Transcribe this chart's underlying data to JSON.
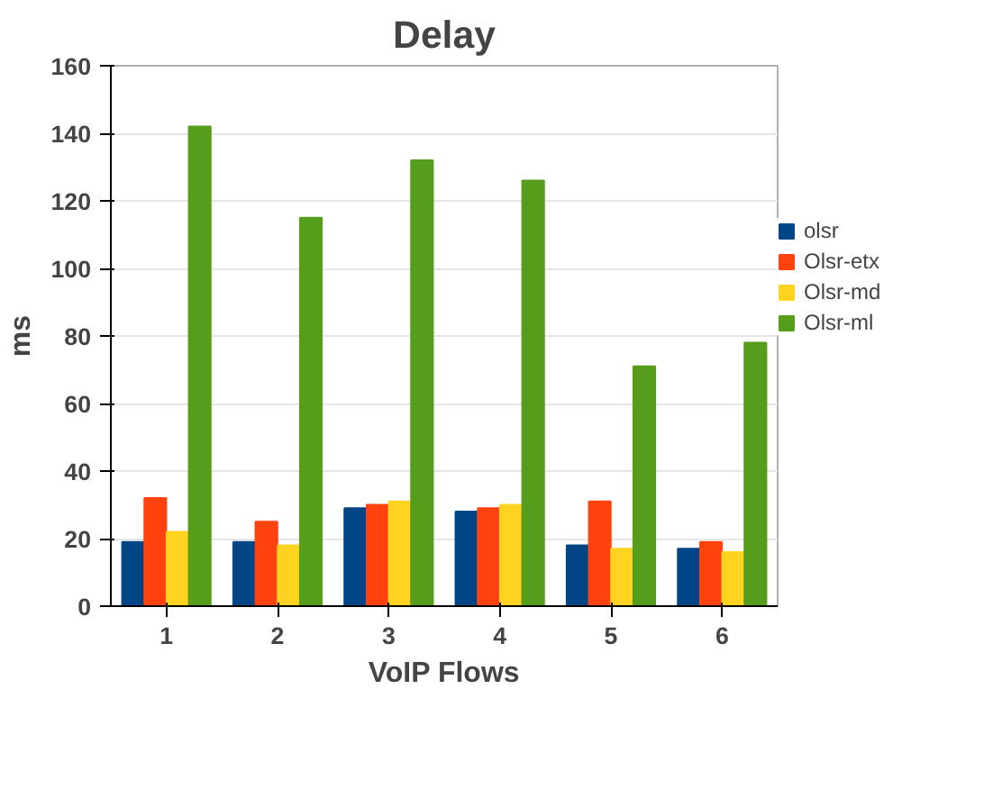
{
  "chart_data": {
    "type": "bar",
    "title": "Delay",
    "xlabel": "VoIP Flows",
    "ylabel": "ms",
    "categories": [
      "1",
      "2",
      "3",
      "4",
      "5",
      "6"
    ],
    "series": [
      {
        "name": "olsr",
        "color": "#004586",
        "values": [
          19,
          19,
          29,
          28,
          18,
          17
        ]
      },
      {
        "name": "Olsr-etx",
        "color": "#ff420e",
        "values": [
          32,
          25,
          30,
          29,
          31,
          19
        ]
      },
      {
        "name": "Olsr-md",
        "color": "#ffd320",
        "values": [
          22,
          18,
          31,
          30,
          17,
          16
        ]
      },
      {
        "name": "Olsr-ml",
        "color": "#579d1c",
        "values": [
          142,
          115,
          132,
          126,
          71,
          78
        ]
      }
    ],
    "ylim": [
      0,
      160
    ],
    "yticks": [
      0,
      20,
      40,
      60,
      80,
      100,
      120,
      140,
      160
    ],
    "grid": "y",
    "legend": "right"
  }
}
